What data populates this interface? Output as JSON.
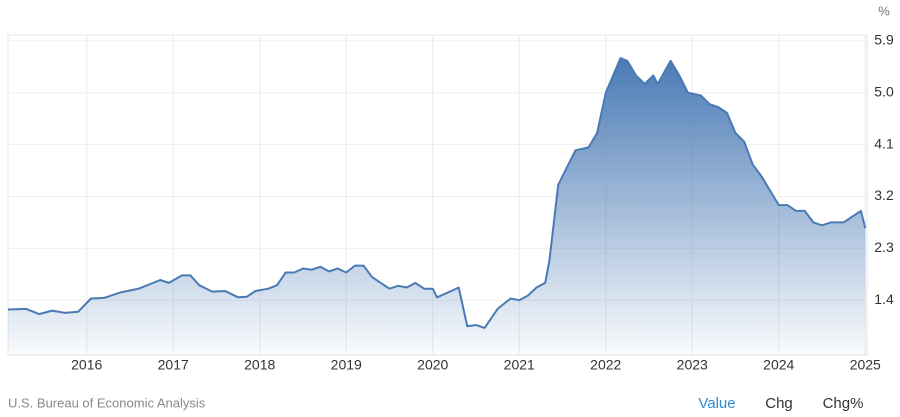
{
  "chart_data": {
    "type": "area",
    "unit": "%",
    "source": "U.S. Bureau of Economic Analysis",
    "controls": [
      "Value",
      "Chg",
      "Chg%"
    ],
    "x": [
      2015.09,
      2015.3,
      2015.45,
      2015.6,
      2015.75,
      2015.9,
      2016.05,
      2016.2,
      2016.4,
      2016.6,
      2016.75,
      2016.85,
      2016.95,
      2017.1,
      2017.2,
      2017.3,
      2017.45,
      2017.6,
      2017.75,
      2017.85,
      2017.95,
      2018.1,
      2018.2,
      2018.3,
      2018.4,
      2018.5,
      2018.6,
      2018.7,
      2018.8,
      2018.9,
      2019.0,
      2019.1,
      2019.2,
      2019.3,
      2019.4,
      2019.5,
      2019.6,
      2019.7,
      2019.8,
      2019.9,
      2020.0,
      2020.05,
      2020.2,
      2020.3,
      2020.4,
      2020.5,
      2020.6,
      2020.75,
      2020.9,
      2021.0,
      2021.1,
      2021.2,
      2021.3,
      2021.35,
      2021.45,
      2021.55,
      2021.65,
      2021.8,
      2021.9,
      2022.0,
      2022.1,
      2022.17,
      2022.25,
      2022.35,
      2022.45,
      2022.55,
      2022.6,
      2022.75,
      2022.85,
      2022.95,
      2023.1,
      2023.2,
      2023.3,
      2023.4,
      2023.5,
      2023.6,
      2023.7,
      2023.8,
      2023.9,
      2024.0,
      2024.1,
      2024.2,
      2024.3,
      2024.4,
      2024.5,
      2024.6,
      2024.75,
      2024.85,
      2024.95,
      2025.0
    ],
    "values": [
      1.24,
      1.25,
      1.16,
      1.22,
      1.18,
      1.2,
      1.43,
      1.44,
      1.54,
      1.6,
      1.69,
      1.75,
      1.7,
      1.83,
      1.83,
      1.66,
      1.55,
      1.56,
      1.45,
      1.46,
      1.56,
      1.6,
      1.66,
      1.88,
      1.88,
      1.95,
      1.93,
      1.98,
      1.9,
      1.95,
      1.88,
      2.0,
      2.0,
      1.8,
      1.7,
      1.6,
      1.65,
      1.62,
      1.7,
      1.6,
      1.6,
      1.45,
      1.55,
      1.62,
      0.95,
      0.97,
      0.92,
      1.25,
      1.43,
      1.4,
      1.48,
      1.62,
      1.7,
      2.1,
      3.4,
      3.7,
      4.0,
      4.05,
      4.3,
      5.0,
      5.35,
      5.6,
      5.55,
      5.3,
      5.15,
      5.3,
      5.15,
      5.55,
      5.3,
      5.0,
      4.95,
      4.8,
      4.75,
      4.65,
      4.3,
      4.15,
      3.75,
      3.55,
      3.3,
      3.05,
      3.05,
      2.95,
      2.95,
      2.75,
      2.7,
      2.75,
      2.75,
      2.85,
      2.95,
      2.65
    ],
    "color": "#4a7ab5",
    "xlim": [
      2015.09,
      2025.02
    ],
    "xticks": [
      2016,
      2017,
      2018,
      2019,
      2020,
      2021,
      2022,
      2023,
      2024,
      2025
    ],
    "ylim": [
      0.45,
      6.0
    ],
    "yticks": [
      1.4,
      2.3,
      3.2,
      4.1,
      {
        "value": 5,
        "label": "5.0"
      },
      5.9
    ],
    "grid": true
  }
}
